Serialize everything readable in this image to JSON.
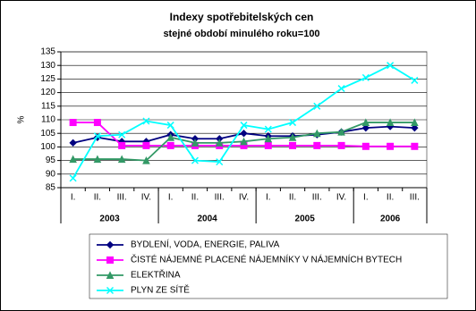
{
  "chart_data": {
    "type": "line",
    "title": "Indexy spotřebitelských cen",
    "subtitle": "stejné období minulého roku=100",
    "y_label": "%",
    "categories": [
      "I.",
      "II.",
      "III.",
      "IV.",
      "I.",
      "II.",
      "III.",
      "IV.",
      "I.",
      "II.",
      "III.",
      "IV.",
      "I.",
      "II.",
      "III."
    ],
    "groups": [
      {
        "label": "2003",
        "count": 4
      },
      {
        "label": "2004",
        "count": 4
      },
      {
        "label": "2005",
        "count": 4
      },
      {
        "label": "2006",
        "count": 3
      }
    ],
    "ylim": [
      85,
      135
    ],
    "yticks": [
      85,
      90,
      95,
      100,
      105,
      110,
      115,
      120,
      125,
      130,
      135
    ],
    "grid": true,
    "legend": "bottom",
    "series": [
      {
        "name": "BYDLENÍ, VODA, ENERGIE, PALIVA",
        "color": "#000080",
        "marker": "diamond",
        "values": [
          101.5,
          103.5,
          102,
          102,
          104.5,
          103,
          103,
          105,
          104,
          104,
          104.5,
          105.5,
          107,
          107.5,
          107
        ]
      },
      {
        "name": "ČISTÉ NÁJEMNÉ PLACENÉ NÁJEMNÍKY V NÁJEMNÍCH BYTECH",
        "color": "#ff00ff",
        "marker": "square",
        "values": [
          109,
          109,
          100.5,
          100.5,
          100.5,
          100.5,
          100.5,
          100.5,
          100.5,
          100.5,
          100.5,
          100.5,
          100.2,
          100.2,
          100.2
        ]
      },
      {
        "name": "ELEKTŘINA",
        "color": "#339966",
        "marker": "triangle",
        "values": [
          95.5,
          95.5,
          95.5,
          95,
          103.5,
          101.5,
          101.5,
          102,
          103,
          103.5,
          105,
          105.5,
          109,
          109,
          109
        ]
      },
      {
        "name": "PLYN ZE SÍTĚ",
        "color": "#00ffff",
        "marker": "x",
        "values": [
          88.5,
          104,
          104.5,
          109.5,
          108,
          95,
          94.5,
          108,
          106.5,
          109,
          115,
          121.5,
          125.5,
          130,
          124.5
        ]
      }
    ]
  }
}
